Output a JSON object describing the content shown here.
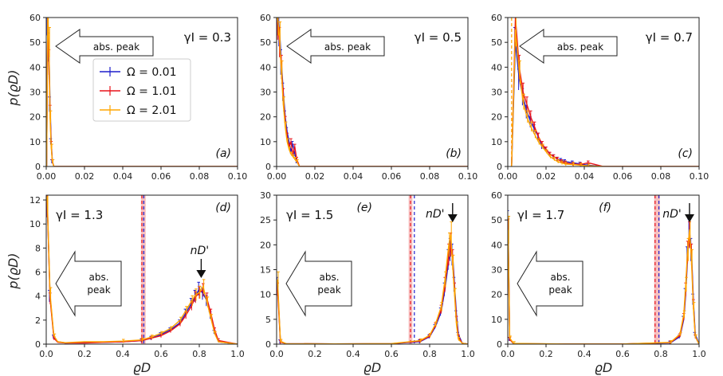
{
  "figure": {
    "x_axis_label": "ϱD",
    "y_axis_label": "p(ϱD)",
    "arrow_text": "abs. peak",
    "arrow_text_split": [
      "abs.",
      "peak"
    ],
    "nd_label": "nD'",
    "colors": {
      "blue": "#1f1fcc",
      "red": "#e8141c",
      "orange": "#ffa500",
      "band": "#f4a9a9"
    }
  },
  "legend": {
    "entries": [
      {
        "label": "Ω = 0.01",
        "color": "#1f1fcc"
      },
      {
        "label": "Ω = 1.01",
        "color": "#e8141c"
      },
      {
        "label": "Ω = 2.01",
        "color": "#ffa500"
      }
    ]
  },
  "chart_data": [
    {
      "id": "a",
      "type": "line",
      "tag": "(a)",
      "gamma": "γI = 0.3",
      "xlim": [
        0,
        0.1
      ],
      "ylim": [
        0,
        60
      ],
      "xticks": [
        "0.00",
        "0.02",
        "0.04",
        "0.06",
        "0.08",
        "0.10"
      ],
      "yticks": [
        "0",
        "10",
        "20",
        "30",
        "40",
        "50",
        "60"
      ],
      "series": [
        {
          "name": "Ω = 0.01",
          "color": "#1f1fcc",
          "x": [
            0.0002,
            0.0008,
            0.0014,
            0.002,
            0.0026,
            0.0032,
            0.004,
            0.1
          ],
          "y": [
            0,
            60,
            48,
            25,
            10,
            2,
            0,
            0
          ]
        },
        {
          "name": "Ω = 1.01",
          "color": "#e8141c",
          "x": [
            0.0002,
            0.0008,
            0.0014,
            0.002,
            0.0026,
            0.0032,
            0.004,
            0.1
          ],
          "y": [
            0,
            60,
            42,
            22,
            9,
            2,
            0,
            0
          ]
        },
        {
          "name": "Ω = 2.01",
          "color": "#ffa500",
          "x": [
            0.0002,
            0.0008,
            0.0014,
            0.002,
            0.0026,
            0.0032,
            0.004,
            0.1
          ],
          "y": [
            0,
            60,
            50,
            20,
            8,
            2,
            0,
            0
          ]
        }
      ]
    },
    {
      "id": "b",
      "type": "line",
      "tag": "(b)",
      "gamma": "γI = 0.5",
      "xlim": [
        0,
        0.1
      ],
      "ylim": [
        0,
        60
      ],
      "xticks": [
        "0.00",
        "0.02",
        "0.04",
        "0.06",
        "0.08",
        "0.10"
      ],
      "yticks": [
        "0",
        "10",
        "20",
        "30",
        "40",
        "50",
        "60"
      ],
      "series": [
        {
          "name": "Ω = 0.01",
          "color": "#1f1fcc",
          "x": [
            0.0005,
            0.0015,
            0.0025,
            0.0035,
            0.0045,
            0.0055,
            0.0065,
            0.0075,
            0.0085,
            0.0095,
            0.0105,
            0.012,
            0.1
          ],
          "y": [
            60,
            55,
            42,
            30,
            20,
            14,
            10,
            6,
            9,
            5,
            2,
            0,
            0
          ]
        },
        {
          "name": "Ω = 1.01",
          "color": "#e8141c",
          "x": [
            0.0005,
            0.0015,
            0.0025,
            0.0035,
            0.0045,
            0.0055,
            0.0065,
            0.0075,
            0.0085,
            0.0095,
            0.0105,
            0.012,
            0.1
          ],
          "y": [
            58,
            50,
            40,
            28,
            18,
            12,
            8,
            10,
            5,
            8,
            3,
            0,
            0
          ]
        },
        {
          "name": "Ω = 2.01",
          "color": "#ffa500",
          "x": [
            0.0005,
            0.0015,
            0.0025,
            0.0035,
            0.0045,
            0.0055,
            0.0065,
            0.0075,
            0.0085,
            0.0095,
            0.0105,
            0.012,
            0.1
          ],
          "y": [
            60,
            52,
            38,
            25,
            16,
            10,
            7,
            5,
            4,
            3,
            2,
            0,
            0
          ]
        }
      ]
    },
    {
      "id": "c",
      "type": "line",
      "tag": "(c)",
      "gamma": "γI = 0.7",
      "xlim": [
        0,
        0.1
      ],
      "ylim": [
        0,
        60
      ],
      "xticks": [
        "0.00",
        "0.02",
        "0.04",
        "0.06",
        "0.08",
        "0.10"
      ],
      "yticks": [
        "0",
        "10",
        "20",
        "30",
        "40",
        "50",
        "60"
      ],
      "series": [
        {
          "name": "Ω = 0.01",
          "color": "#1f1fcc",
          "x": [
            0.002,
            0.004,
            0.006,
            0.008,
            0.01,
            0.012,
            0.014,
            0.016,
            0.018,
            0.02,
            0.022,
            0.024,
            0.026,
            0.028,
            0.03,
            0.034,
            0.038,
            0.042,
            0.05,
            0.1
          ],
          "y": [
            0,
            50,
            35,
            28,
            22,
            18,
            15,
            12,
            8,
            7,
            5,
            4,
            3,
            2.5,
            2,
            1.5,
            1,
            0.5,
            0,
            0
          ]
        },
        {
          "name": "Ω = 1.01",
          "color": "#e8141c",
          "x": [
            0.002,
            0.004,
            0.006,
            0.008,
            0.01,
            0.012,
            0.014,
            0.016,
            0.018,
            0.02,
            0.022,
            0.024,
            0.026,
            0.028,
            0.03,
            0.034,
            0.038,
            0.042,
            0.05,
            0.1
          ],
          "y": [
            0,
            60,
            40,
            30,
            25,
            20,
            16,
            12,
            9,
            7,
            5,
            4,
            3,
            2,
            1.5,
            1,
            0.8,
            1.5,
            0,
            0
          ]
        },
        {
          "name": "Ω = 2.01",
          "color": "#ffa500",
          "x": [
            0.002,
            0.004,
            0.006,
            0.008,
            0.01,
            0.012,
            0.014,
            0.016,
            0.018,
            0.02,
            0.022,
            0.024,
            0.026,
            0.028,
            0.03,
            0.034,
            0.038,
            0.042,
            0.05,
            0.1
          ],
          "y": [
            0,
            55,
            38,
            26,
            20,
            16,
            13,
            10,
            8,
            6,
            4,
            3,
            2,
            1.5,
            1,
            0.8,
            0.5,
            0.3,
            0,
            0
          ]
        }
      ]
    },
    {
      "id": "d",
      "type": "line",
      "tag": "(d)",
      "gamma": "γI = 1.3",
      "xlim": [
        0,
        1.0
      ],
      "ylim": [
        0,
        12.4
      ],
      "xticks": [
        "0.0",
        "0.2",
        "0.4",
        "0.6",
        "0.8",
        "1.0"
      ],
      "yticks": [
        "0",
        "2",
        "4",
        "6",
        "8",
        "10",
        "12"
      ],
      "vlines": [
        0.5,
        0.51
      ],
      "band": [
        0.495,
        0.52
      ],
      "nd_x": 0.81,
      "series": [
        {
          "name": "Ω = 0.01",
          "color": "#1f1fcc",
          "x": [
            0.005,
            0.02,
            0.04,
            0.06,
            0.1,
            0.2,
            0.3,
            0.4,
            0.5,
            0.55,
            0.6,
            0.65,
            0.7,
            0.73,
            0.76,
            0.78,
            0.8,
            0.82,
            0.84,
            0.86,
            0.88,
            0.9,
            1.0
          ],
          "y": [
            12,
            4,
            0.6,
            0.2,
            0.1,
            0.15,
            0.15,
            0.2,
            0.3,
            0.5,
            0.8,
            1.2,
            1.8,
            2.6,
            3.4,
            4.0,
            4.6,
            4.2,
            3.6,
            2.4,
            1.0,
            0.2,
            0
          ]
        },
        {
          "name": "Ω = 1.01",
          "color": "#e8141c",
          "x": [
            0.005,
            0.02,
            0.04,
            0.06,
            0.1,
            0.2,
            0.3,
            0.4,
            0.5,
            0.55,
            0.6,
            0.65,
            0.7,
            0.73,
            0.76,
            0.78,
            0.8,
            0.82,
            0.84,
            0.86,
            0.88,
            0.9,
            1.0
          ],
          "y": [
            12,
            3.8,
            0.5,
            0.15,
            0.1,
            0.1,
            0.15,
            0.2,
            0.3,
            0.5,
            0.7,
            1.1,
            1.7,
            2.4,
            3.2,
            3.9,
            4.3,
            4.5,
            3.8,
            2.6,
            1.2,
            0.3,
            0
          ]
        },
        {
          "name": "Ω = 2.01",
          "color": "#ffa500",
          "x": [
            0.005,
            0.02,
            0.04,
            0.06,
            0.1,
            0.2,
            0.3,
            0.4,
            0.5,
            0.55,
            0.6,
            0.65,
            0.7,
            0.73,
            0.76,
            0.78,
            0.8,
            0.82,
            0.84,
            0.86,
            0.88,
            0.9,
            1.0
          ],
          "y": [
            12.3,
            4.2,
            0.7,
            0.2,
            0.12,
            0.2,
            0.2,
            0.25,
            0.35,
            0.6,
            0.9,
            1.3,
            2.0,
            2.8,
            3.6,
            4.1,
            4.3,
            4.8,
            3.5,
            2.2,
            0.9,
            0.2,
            0
          ]
        }
      ]
    },
    {
      "id": "e",
      "type": "line",
      "tag": "(e)",
      "gamma": "γI = 1.5",
      "xlim": [
        0,
        1.0
      ],
      "ylim": [
        0,
        30
      ],
      "xticks": [
        "0.0",
        "0.2",
        "0.4",
        "0.6",
        "0.8",
        "1.0"
      ],
      "yticks": [
        "0",
        "5",
        "10",
        "15",
        "20",
        "25",
        "30"
      ],
      "vlines": [
        0.7,
        0.72
      ],
      "band": [
        0.69,
        0.71
      ],
      "nd_x": 0.92,
      "series": [
        {
          "name": "Ω = 0.01",
          "color": "#1f1fcc",
          "x": [
            0.005,
            0.02,
            0.05,
            0.3,
            0.6,
            0.75,
            0.8,
            0.83,
            0.86,
            0.88,
            0.9,
            0.91,
            0.92,
            0.93,
            0.94,
            0.95,
            0.97,
            1.0
          ],
          "y": [
            12,
            0.5,
            0.1,
            0.05,
            0.1,
            0.5,
            1.5,
            3.5,
            6.5,
            11,
            17,
            19,
            18,
            12,
            6,
            2,
            0.2,
            0
          ]
        },
        {
          "name": "Ω = 1.01",
          "color": "#e8141c",
          "x": [
            0.005,
            0.02,
            0.05,
            0.3,
            0.6,
            0.75,
            0.8,
            0.83,
            0.86,
            0.88,
            0.9,
            0.91,
            0.92,
            0.93,
            0.94,
            0.95,
            0.97,
            1.0
          ],
          "y": [
            11,
            0.4,
            0.1,
            0.05,
            0.1,
            0.6,
            1.6,
            3.8,
            7,
            12,
            18,
            20,
            17,
            11,
            5,
            1.5,
            0.2,
            0
          ]
        },
        {
          "name": "Ω = 2.01",
          "color": "#ffa500",
          "x": [
            0.005,
            0.02,
            0.05,
            0.3,
            0.6,
            0.75,
            0.8,
            0.83,
            0.86,
            0.88,
            0.9,
            0.91,
            0.92,
            0.93,
            0.94,
            0.95,
            0.97,
            1.0
          ],
          "y": [
            13,
            0.6,
            0.1,
            0.05,
            0.12,
            0.7,
            1.8,
            4,
            7.5,
            13,
            20,
            22,
            16,
            10,
            4,
            1,
            0.2,
            0
          ]
        }
      ]
    },
    {
      "id": "f",
      "type": "line",
      "tag": "(f)",
      "gamma": "γI = 1.7",
      "xlim": [
        0,
        1.0
      ],
      "ylim": [
        0,
        60
      ],
      "xticks": [
        "0.0",
        "0.2",
        "0.4",
        "0.6",
        "0.8",
        "1.0"
      ],
      "yticks": [
        "0",
        "10",
        "20",
        "30",
        "40",
        "50",
        "60"
      ],
      "vlines": [
        0.77,
        0.79
      ],
      "band": [
        0.765,
        0.795
      ],
      "nd_x": 0.95,
      "series": [
        {
          "name": "Ω = 0.01",
          "color": "#1f1fcc",
          "x": [
            0.002,
            0.01,
            0.03,
            0.3,
            0.6,
            0.85,
            0.9,
            0.92,
            0.93,
            0.94,
            0.95,
            0.96,
            0.97,
            0.98,
            1.0
          ],
          "y": [
            48,
            2,
            0.2,
            0.05,
            0.05,
            0.5,
            3,
            10,
            20,
            35,
            45,
            38,
            18,
            4,
            0
          ]
        },
        {
          "name": "Ω = 1.01",
          "color": "#e8141c",
          "x": [
            0.002,
            0.01,
            0.03,
            0.3,
            0.6,
            0.85,
            0.9,
            0.92,
            0.93,
            0.94,
            0.95,
            0.96,
            0.97,
            0.98,
            1.0
          ],
          "y": [
            45,
            2,
            0.2,
            0.05,
            0.05,
            0.6,
            3.5,
            11,
            22,
            37,
            44,
            36,
            16,
            3,
            0
          ]
        },
        {
          "name": "Ω = 2.01",
          "color": "#ffa500",
          "x": [
            0.002,
            0.01,
            0.03,
            0.3,
            0.6,
            0.85,
            0.9,
            0.92,
            0.93,
            0.94,
            0.95,
            0.96,
            0.97,
            0.98,
            1.0
          ],
          "y": [
            46,
            2.5,
            0.3,
            0.05,
            0.05,
            0.7,
            4,
            12,
            24,
            38,
            46,
            34,
            15,
            3,
            0
          ]
        }
      ]
    }
  ]
}
